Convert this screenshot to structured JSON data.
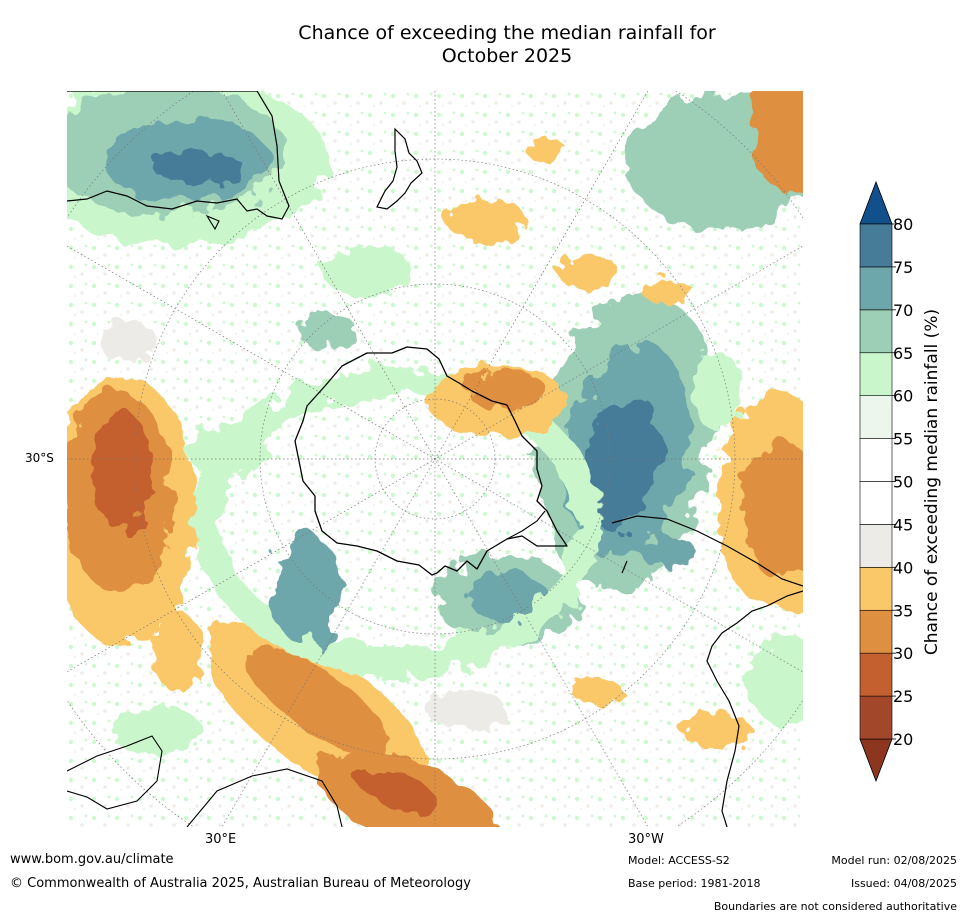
{
  "title_line1": "Chance of exceeding the median rainfall for",
  "title_line2": "October 2025",
  "axes": {
    "lat_label": "30°S",
    "lon_label_east": "30°E",
    "lon_label_west": "30°W"
  },
  "colorbar": {
    "label": "Chance of exceeding median rainfall (%)",
    "ticks": [
      "20",
      "25",
      "30",
      "35",
      "40",
      "45",
      "50",
      "55",
      "60",
      "65",
      "70",
      "75",
      "80"
    ],
    "colors": [
      "#a3472a",
      "#c4602f",
      "#de8f40",
      "#fbc869",
      "#ecebe7",
      "#ffffff",
      "#ffffff",
      "#ecf6ec",
      "#c9f7cb",
      "#9dcfb7",
      "#6ea7ab",
      "#467c98"
    ],
    "under_color": "#8c351f",
    "over_color": "#12508c"
  },
  "footer": {
    "website": "www.bom.gov.au/climate",
    "copyright": "© Commonwealth of Australia 2025, Australian Bureau of Meteorology",
    "model": "Model: ACCESS-S2",
    "base_period": "Base period: 1981-2018",
    "model_run": "Model run: 02/08/2025",
    "issued": "Issued: 04/08/2025",
    "disclaimer": "Boundaries are not considered authoritative"
  }
}
